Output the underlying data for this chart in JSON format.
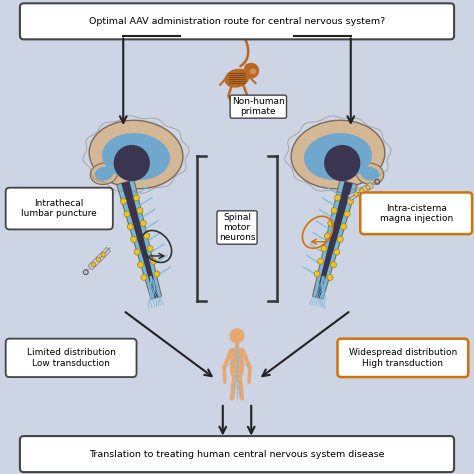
{
  "background_color": "#cdd4e3",
  "title_text": "Optimal AAV administration route for central nervous system?",
  "bottom_text": "Translation to treating human central nervous system disease",
  "left_label1": "Intrathecal\nlumbar puncture",
  "left_label2": "Limited distribution\nLow transduction",
  "right_label1": "Intra-cisterna\nmagna injection",
  "right_label2": "Widespread distribution\nHigh transduction",
  "center_label": "Spinal\nmotor\nneurons",
  "primate_label": "Non-human\nprimate",
  "dark_border": "#444444",
  "orange_border": "#d4720a",
  "brain_tan": "#d4b896",
  "brain_outline": "#7a6a5a",
  "brain_blue": "#6fa8cc",
  "brain_dark": "#3a3550",
  "spine_blue": "#7ab8d8",
  "neuron_yellow": "#f0c030",
  "monkey_brown": "#b86820",
  "monkey_stripe": "#222222",
  "human_skin": "#e8a870",
  "human_nerve": "#90b8d0",
  "arrow_dark": "#222222",
  "orange_arrow": "#c87010",
  "white": "#ffffff"
}
